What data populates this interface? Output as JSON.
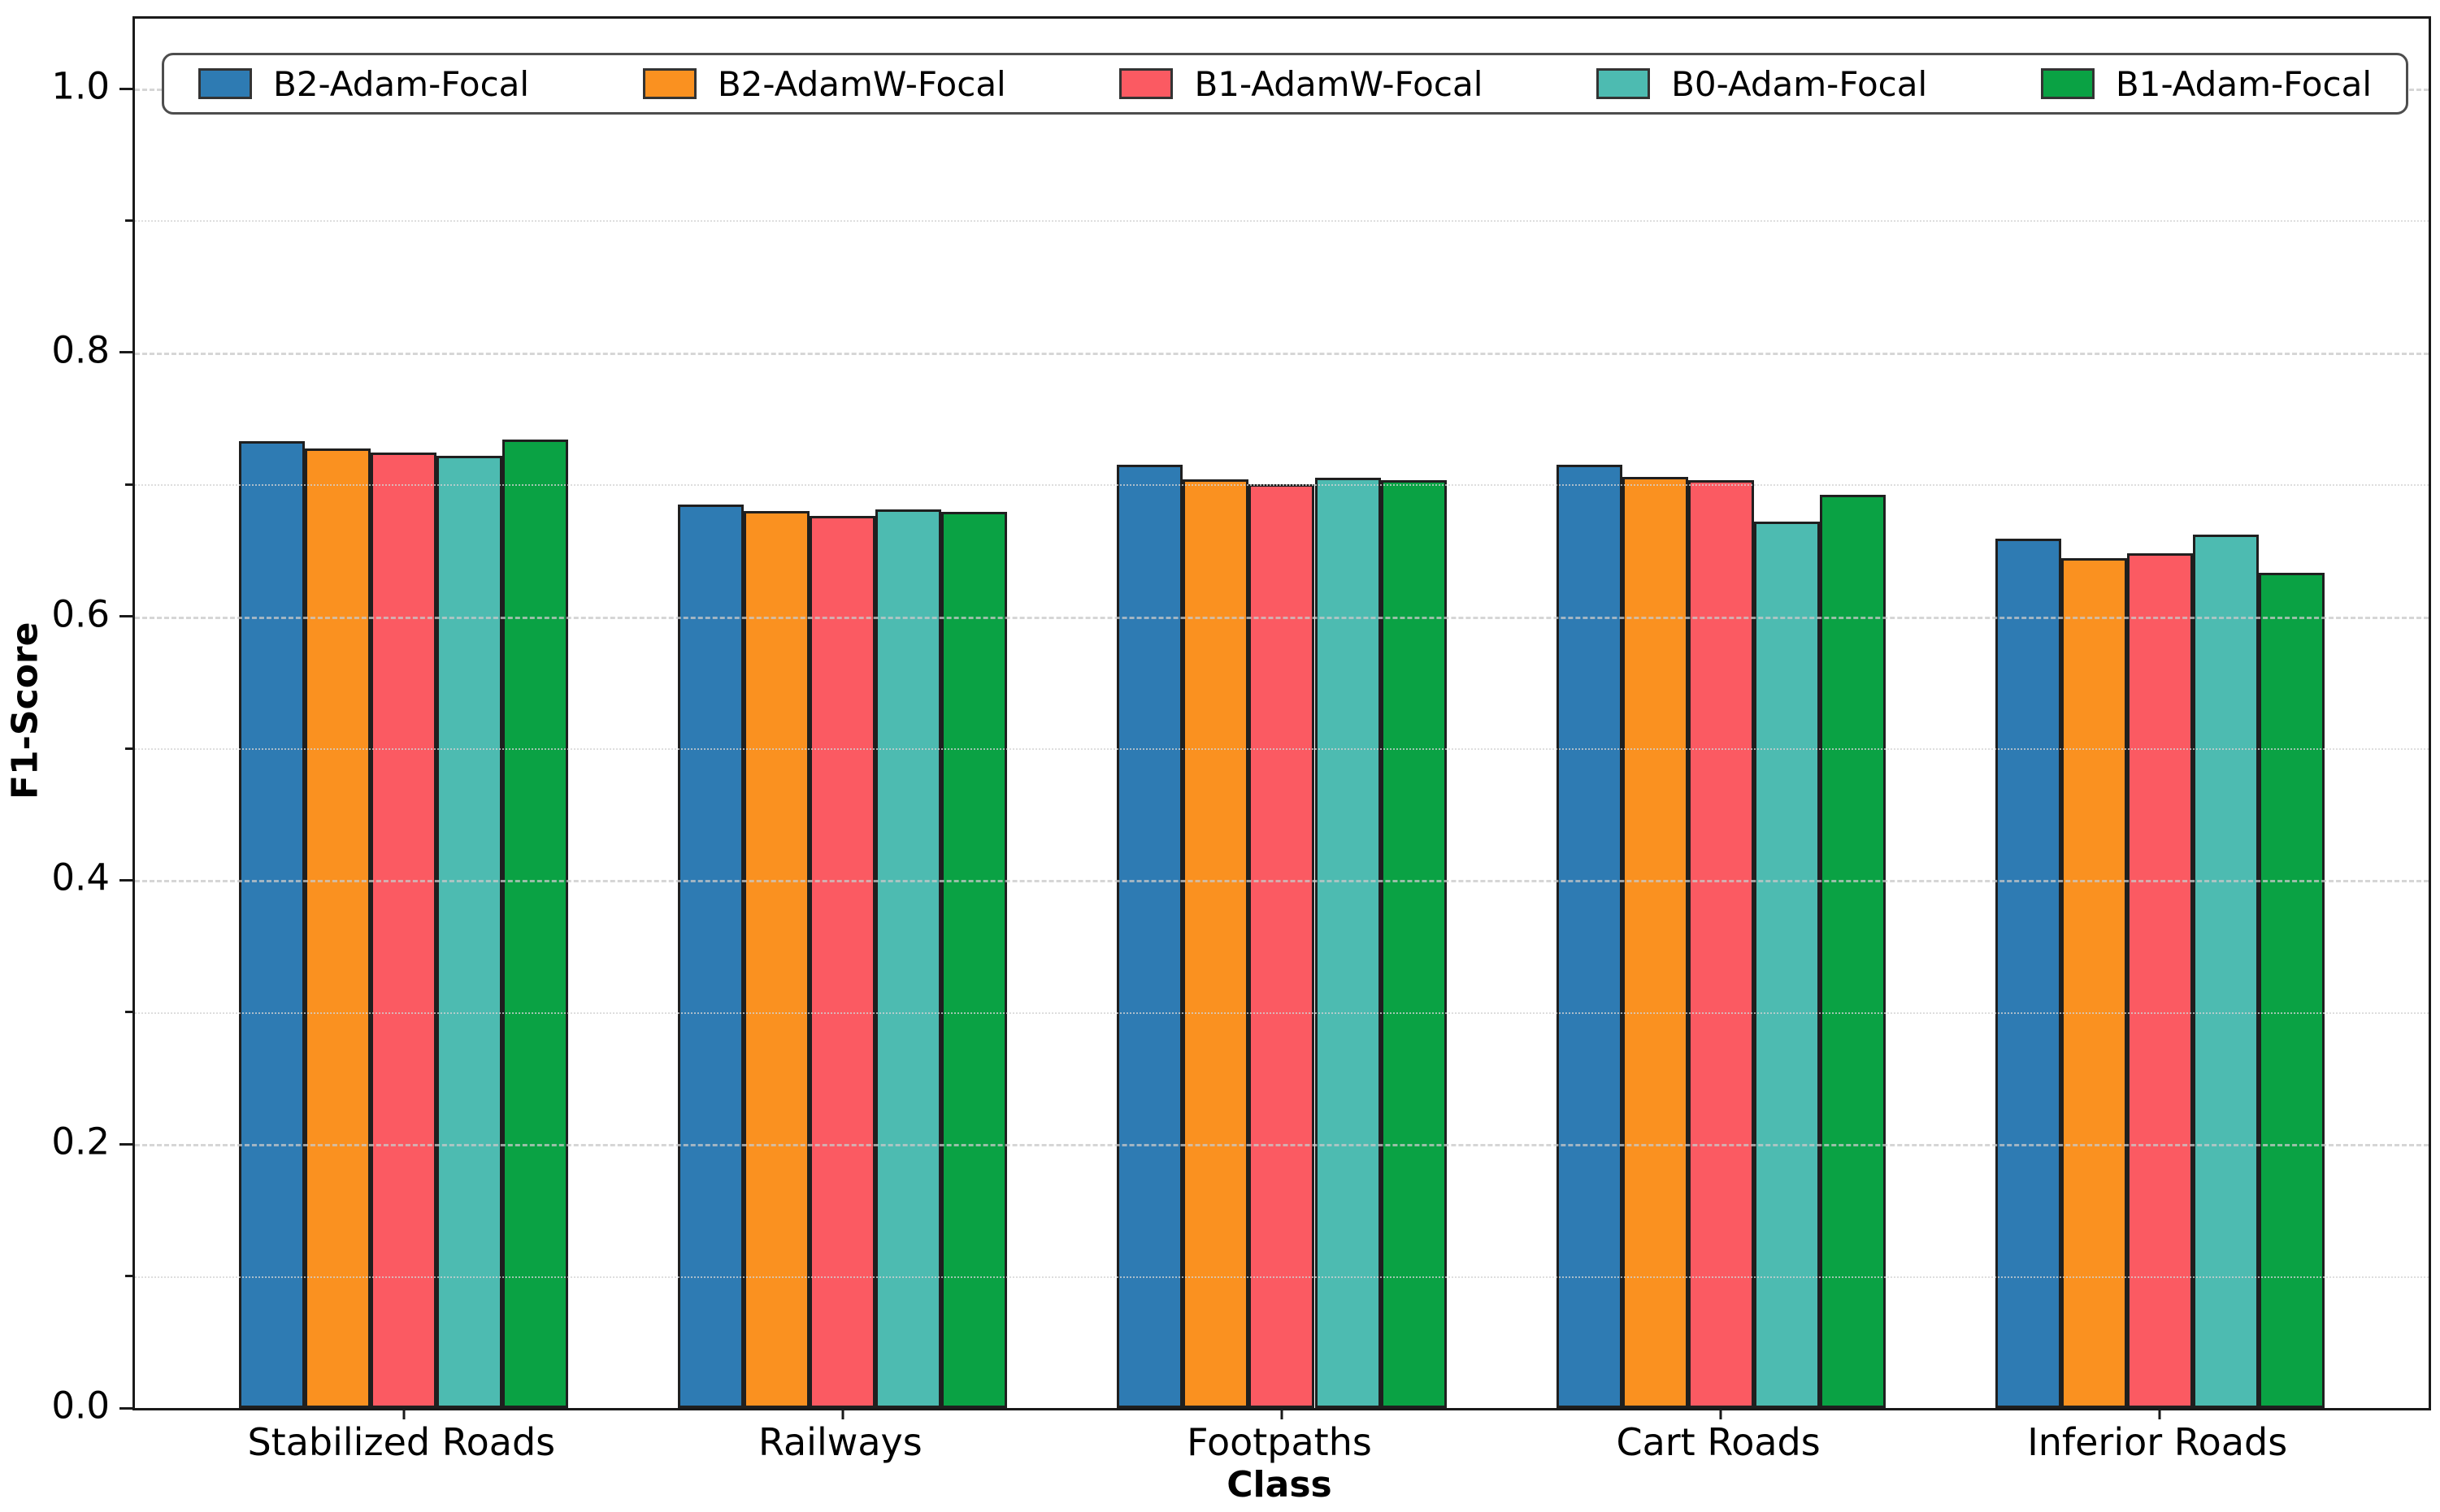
{
  "chart_data": {
    "type": "bar",
    "title": "",
    "xlabel": "Class",
    "ylabel": "F1-Score",
    "categories": [
      "Stabilized Roads",
      "Railways",
      "Footpaths",
      "Cart Roads",
      "Inferior Roads"
    ],
    "series": [
      {
        "name": "B2-Adam-Focal",
        "color": "#2e7bb3",
        "values": [
          0.733,
          0.685,
          0.715,
          0.715,
          0.659
        ]
      },
      {
        "name": "B2-AdamW-Focal",
        "color": "#fa9120",
        "values": [
          0.727,
          0.68,
          0.704,
          0.706,
          0.644
        ]
      },
      {
        "name": "B1-AdamW-Focal",
        "color": "#fb5a62",
        "values": [
          0.724,
          0.676,
          0.7,
          0.703,
          0.648
        ]
      },
      {
        "name": "B0-Adam-Focal",
        "color": "#4dbbb1",
        "values": [
          0.722,
          0.681,
          0.705,
          0.672,
          0.662
        ]
      },
      {
        "name": "B1-Adam-Focal",
        "color": "#0aa244",
        "values": [
          0.734,
          0.679,
          0.703,
          0.692,
          0.633
        ]
      }
    ],
    "ylim": [
      0,
      1.053
    ],
    "yticks_major": [
      0.0,
      0.2,
      0.4,
      0.6,
      0.8,
      1.0
    ],
    "ytick_labels": [
      "0.0",
      "0.2",
      "0.4",
      "0.6",
      "0.8",
      "1.0"
    ],
    "yticks_minor": [
      0.1,
      0.3,
      0.5,
      0.7,
      0.9
    ],
    "grid": "horizontal, every 0.1, dashed light grey, drawn over bars",
    "legend_position": "top inside, single row",
    "bar_width_units": 0.15,
    "bar_edge_color": "#1f1f1f",
    "gridline_color": "#cccccc",
    "spine_color": "#1a1a1a"
  }
}
